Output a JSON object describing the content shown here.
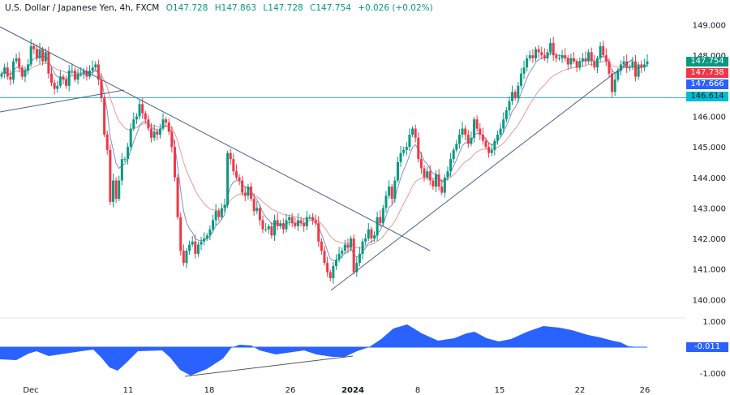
{
  "header": {
    "symbol": "U.S. Dollar / Japanese Yen, 4h, FXCM",
    "open": "O147.728",
    "high": "H147.863",
    "low": "L147.728",
    "close": "C147.754",
    "change": "+0.026 (+0.02%)"
  },
  "colors": {
    "up": "#089981",
    "down": "#f23645",
    "ma_fast": "#7f8fc9",
    "ma_slow": "#e89a9a",
    "trendline": "#4a5f8f",
    "hline": "#39a9c6",
    "oscillator": "#2962ff"
  },
  "price_tags": [
    {
      "label": "147.754",
      "color": "#089981",
      "y": 70
    },
    {
      "label": "147.738",
      "color": "#f23645",
      "y": 84
    },
    {
      "label": "147.666",
      "color": "#2962ff",
      "y": 98
    },
    {
      "label": "146.614",
      "color": "#00bcd4",
      "y": 113
    }
  ],
  "oscillator_tag": {
    "label": "-0.011",
    "color": "#2962ff"
  },
  "y_axis": [
    "149.000",
    "148.000",
    "146.000",
    "145.000",
    "144.000",
    "143.000",
    "142.000",
    "141.000",
    "140.000"
  ],
  "osc_axis": [
    "1.000",
    "-1.000"
  ],
  "x_axis": [
    {
      "label": "Dec",
      "x": 38,
      "bold": false
    },
    {
      "label": "11",
      "x": 158,
      "bold": false
    },
    {
      "label": "18",
      "x": 258,
      "bold": false
    },
    {
      "label": "26",
      "x": 358,
      "bold": false
    },
    {
      "label": "2024",
      "x": 435,
      "bold": true
    },
    {
      "label": "8",
      "x": 515,
      "bold": false
    },
    {
      "label": "15",
      "x": 616,
      "bold": false
    },
    {
      "label": "22",
      "x": 715,
      "bold": false
    },
    {
      "label": "26",
      "x": 795,
      "bold": false
    }
  ],
  "chart_data": {
    "type": "candlestick",
    "title": "U.S. Dollar / Japanese Yen, 4h, FXCM",
    "xlabel": "",
    "ylabel": "",
    "ylim": [
      140.0,
      149.2
    ],
    "x_ticks": [
      "Dec",
      "11",
      "18",
      "26",
      "2024",
      "8",
      "15",
      "22",
      "26"
    ],
    "y_ticks": [
      140,
      141,
      142,
      143,
      144,
      145,
      146,
      147,
      148,
      149
    ],
    "horizontal_line": 146.614,
    "last_price": 147.754,
    "closes_approx": [
      147.4,
      147.6,
      147.3,
      147.2,
      147.8,
      147.9,
      147.6,
      147.3,
      147.5,
      147.7,
      148.3,
      148.2,
      147.9,
      148.2,
      147.8,
      148.1,
      147.4,
      147.1,
      146.9,
      147.0,
      147.3,
      147.2,
      147.0,
      147.5,
      147.5,
      147.2,
      147.4,
      147.4,
      147.5,
      147.3,
      147.5,
      147.6,
      147.7,
      147.2,
      146.6,
      145.4,
      144.9,
      143.2,
      143.9,
      143.3,
      143.9,
      144.6,
      144.6,
      145.0,
      145.6,
      145.9,
      146.0,
      146.4,
      146.1,
      145.9,
      145.6,
      145.3,
      145.5,
      145.4,
      145.6,
      145.9,
      145.8,
      145.5,
      145.0,
      144.0,
      142.7,
      141.6,
      141.2,
      141.6,
      141.8,
      141.9,
      141.5,
      141.8,
      141.9,
      142.0,
      142.1,
      142.3,
      142.6,
      142.9,
      142.7,
      143.0,
      143.1,
      144.8,
      144.6,
      144.2,
      144.0,
      143.9,
      143.5,
      143.4,
      143.7,
      143.3,
      142.9,
      143.0,
      142.6,
      142.3,
      142.3,
      142.4,
      142.1,
      142.6,
      142.4,
      142.5,
      142.3,
      142.6,
      142.7,
      142.5,
      142.4,
      142.6,
      142.5,
      142.4,
      142.7,
      142.7,
      142.6,
      142.5,
      141.9,
      141.6,
      141.2,
      140.9,
      140.7,
      141.1,
      141.3,
      141.5,
      141.6,
      141.8,
      141.7,
      142.0,
      140.9,
      141.2,
      141.5,
      141.9,
      142.0,
      142.3,
      142.0,
      142.1,
      142.7,
      142.5,
      143.0,
      143.4,
      143.7,
      143.3,
      143.9,
      144.5,
      144.8,
      144.9,
      145.0,
      145.4,
      145.6,
      145.3,
      144.6,
      144.3,
      144.0,
      144.2,
      143.9,
      143.7,
      144.1,
      143.7,
      143.5,
      144.0,
      144.2,
      144.6,
      144.9,
      145.1,
      145.4,
      145.6,
      145.4,
      145.1,
      145.3,
      145.9,
      145.6,
      145.4,
      145.2,
      145.0,
      144.8,
      144.9,
      145.2,
      145.4,
      145.6,
      145.9,
      146.2,
      146.5,
      146.8,
      146.6,
      147.0,
      147.4,
      147.6,
      147.9,
      148.0,
      147.9,
      148.2,
      148.1,
      148.0,
      147.9,
      148.1,
      148.4,
      148.0,
      147.9,
      147.9,
      148.0,
      147.9,
      147.7,
      147.9,
      147.8,
      147.6,
      147.8,
      147.9,
      147.8,
      148.1,
      147.8,
      147.6,
      147.9,
      148.3,
      148.0,
      147.8,
      147.4,
      146.8,
      147.2,
      147.5,
      147.7,
      147.8,
      147.6,
      147.6,
      147.8,
      147.3,
      147.7,
      147.6,
      147.7,
      147.8
    ],
    "oscillator": {
      "name": "oscillator",
      "ylim": [
        -1.2,
        1.2
      ],
      "last": -0.011
    }
  }
}
